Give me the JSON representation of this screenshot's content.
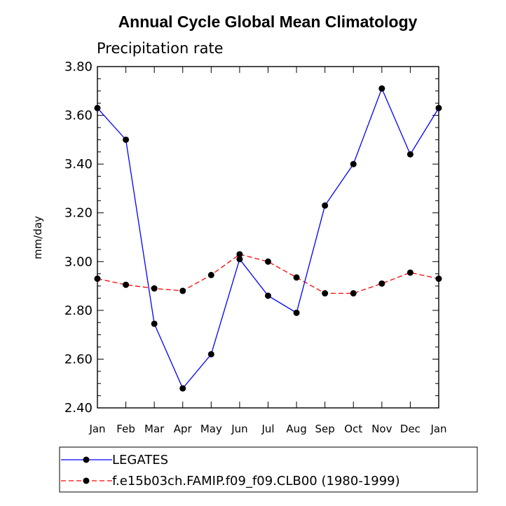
{
  "chart_data": {
    "type": "line",
    "title": "Annual Cycle Global Mean Climatology",
    "subtitle": "Precipitation rate",
    "xlabel": "",
    "ylabel": "mm/day",
    "categories": [
      "Jan",
      "Feb",
      "Mar",
      "Apr",
      "May",
      "Jun",
      "Jul",
      "Aug",
      "Sep",
      "Oct",
      "Nov",
      "Dec",
      "Jan"
    ],
    "yticks": [
      "2.40",
      "2.60",
      "2.80",
      "3.00",
      "3.20",
      "3.40",
      "3.60",
      "3.80"
    ],
    "ylim": [
      2.4,
      3.8
    ],
    "grid": false,
    "legend_position": "bottom",
    "series": [
      {
        "name": "LEGATES",
        "color": "#0000ff",
        "dash": "solid",
        "marker": "filled-circle",
        "values": [
          3.63,
          3.5,
          2.745,
          2.48,
          2.62,
          3.01,
          2.86,
          2.79,
          3.23,
          3.4,
          3.71,
          3.44,
          3.63
        ]
      },
      {
        "name": "f.e15b03ch.FAMIP.f09_f09.CLB00 (1980-1999)",
        "color": "#ff0000",
        "dash": "dashed",
        "marker": "filled-circle",
        "values": [
          2.93,
          2.905,
          2.89,
          2.88,
          2.945,
          3.03,
          3.0,
          2.935,
          2.87,
          2.87,
          2.91,
          2.955,
          2.93
        ]
      }
    ]
  }
}
